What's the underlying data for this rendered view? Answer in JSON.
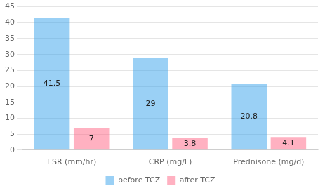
{
  "chart_data": {
    "type": "bar",
    "categories": [
      "ESR (mm/hr)",
      "CRP (mg/L)",
      "Prednisone (mg/d)"
    ],
    "series": [
      {
        "name": "before TCZ",
        "values": [
          41.5,
          29,
          20.8
        ]
      },
      {
        "name": "after TCZ",
        "values": [
          7,
          3.8,
          4.1
        ]
      }
    ],
    "ylim": [
      0,
      45
    ],
    "yticks": [
      0,
      5,
      10,
      15,
      20,
      25,
      30,
      35,
      40,
      45
    ],
    "grid": true,
    "legend": "bottom",
    "data_labels": true
  }
}
